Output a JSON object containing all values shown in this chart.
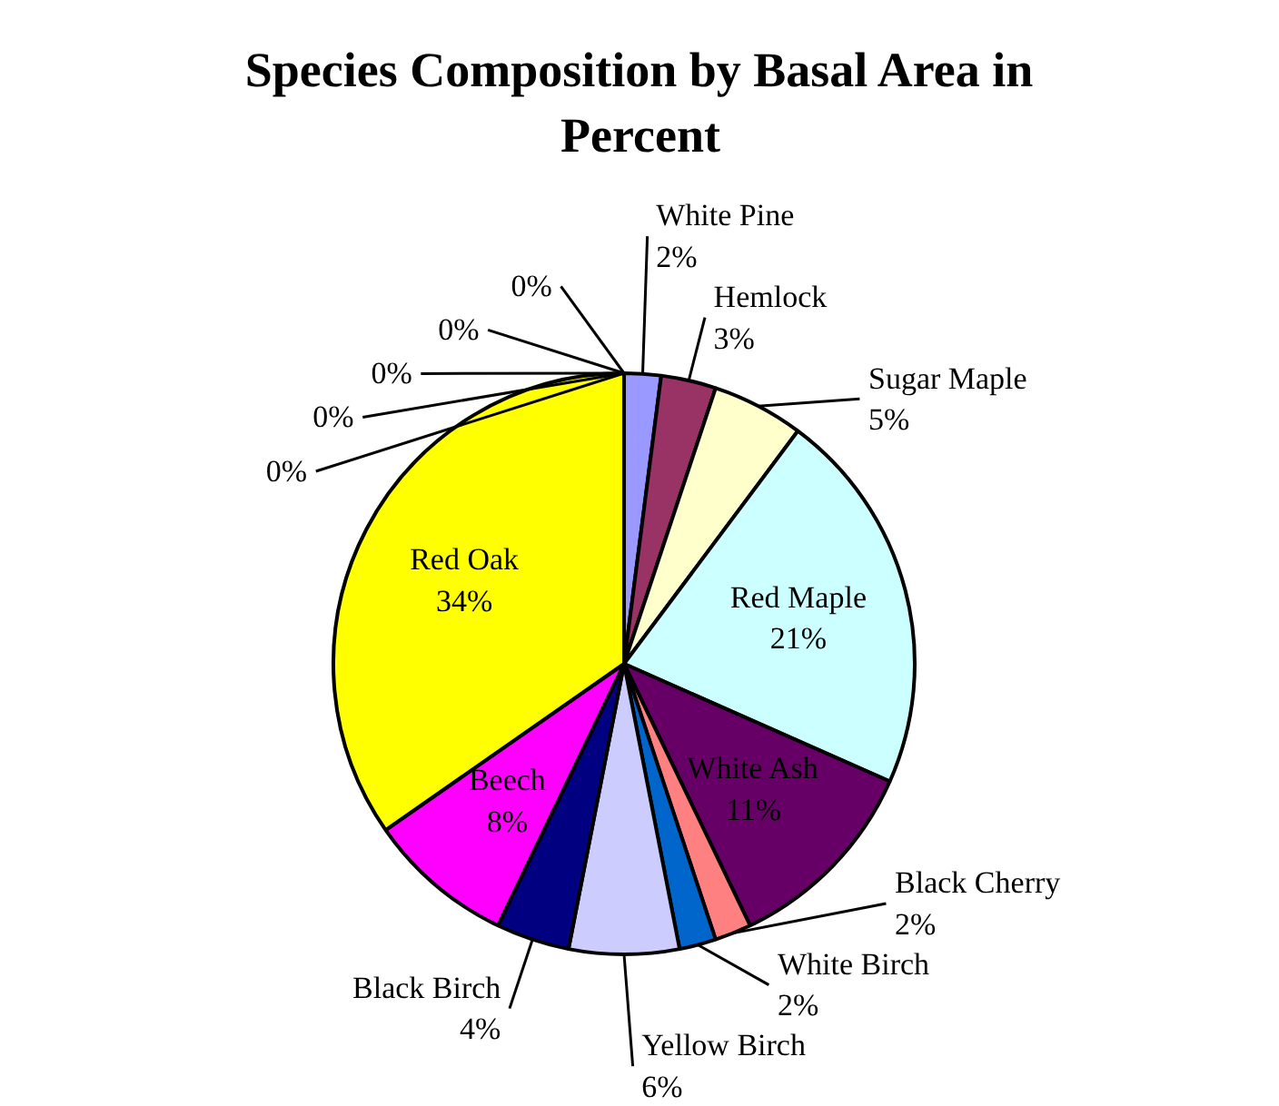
{
  "chart_data": {
    "type": "pie",
    "title": "Species Composition by Basal Area in Percent",
    "categories": [
      "White Pine",
      "Hemlock",
      "Sugar Maple",
      "Red Maple",
      "White Ash",
      "Black Cherry",
      "White Birch",
      "Yellow Birch",
      "Black Birch",
      "Beech",
      "Red Oak",
      null,
      null,
      null,
      null,
      null
    ],
    "values": [
      2,
      3,
      5,
      21,
      11,
      2,
      2,
      6,
      4,
      8,
      34,
      0,
      0,
      0,
      0,
      0
    ],
    "value_labels": [
      "2%",
      "3%",
      "5%",
      "21%",
      "11%",
      "2%",
      "2%",
      "6%",
      "4%",
      "8%",
      "34%",
      "0%",
      "0%",
      "0%",
      "0%",
      "0%"
    ],
    "colors": [
      "#9999ff",
      "#993366",
      "#ffffcc",
      "#ccffff",
      "#660066",
      "#ff8080",
      "#0066cc",
      "#ccccff",
      "#000080",
      "#ff00ff",
      "#ffff00",
      "#00ffff",
      "#800000",
      "#008080",
      "#0000ff",
      "#00ccff"
    ]
  }
}
